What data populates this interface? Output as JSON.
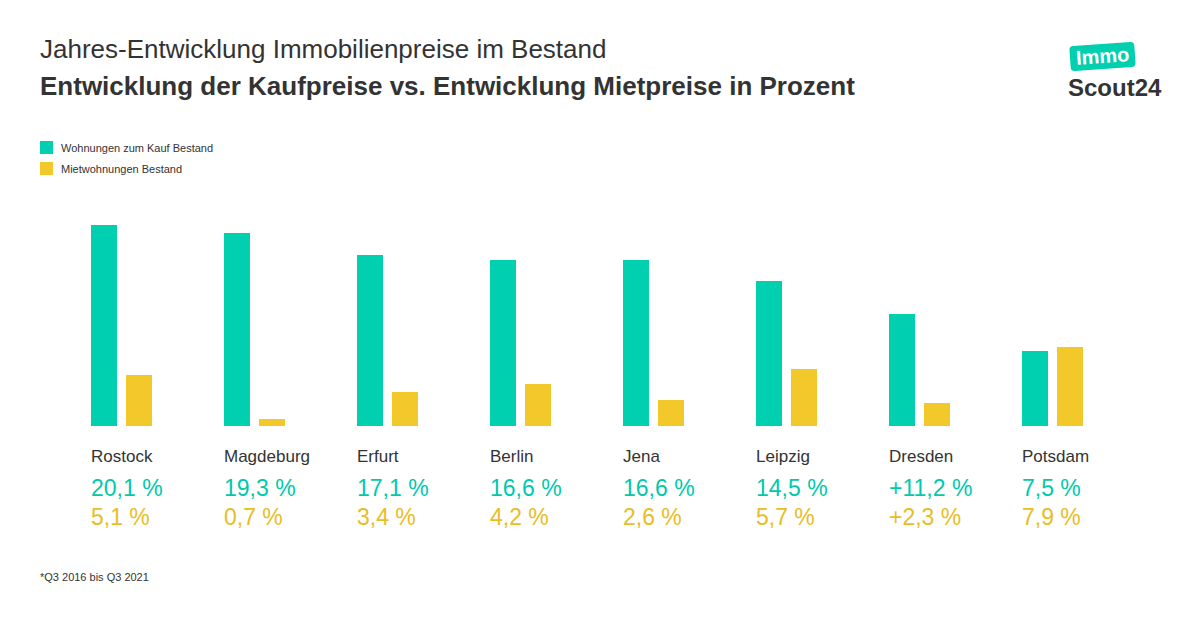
{
  "chart_data": {
    "type": "bar",
    "title": "Jahres-Entwicklung Immobilienpreise im Bestand",
    "subtitle": "Entwicklung der Kaufpreise vs. Entwicklung Mietpreise in Prozent",
    "categories": [
      "Rostock",
      "Magdeburg",
      "Erfurt",
      "Berlin",
      "Jena",
      "Leipzig",
      "Dresden",
      "Potsdam"
    ],
    "series": [
      {
        "name": "Wohnungen zum Kauf Bestand",
        "color": "#00d0b0",
        "values": [
          20.1,
          19.3,
          17.1,
          16.6,
          16.6,
          14.5,
          11.2,
          7.5
        ],
        "value_labels": [
          "20,1 %",
          "19,3 %",
          "17,1 %",
          "16,6 %",
          "16,6 %",
          "14,5 %",
          "+11,2 %",
          "7,5 %"
        ]
      },
      {
        "name": "Mietwohnungen Bestand",
        "color": "#f2c82a",
        "values": [
          5.1,
          0.7,
          3.4,
          4.2,
          2.6,
          5.7,
          2.3,
          7.9
        ],
        "value_labels": [
          "5,1 %",
          "0,7 %",
          "3,4 %",
          "4,2 %",
          "2,6 %",
          "5,7 %",
          "+2,3 %",
          "7,9 %"
        ]
      }
    ],
    "data_labels": true,
    "legend": "top-left",
    "tick_labels": "x",
    "grid": false,
    "note": "*Q3 2016 bis Q3 2021",
    "logo": [
      "Immo",
      "Scout24"
    ]
  }
}
